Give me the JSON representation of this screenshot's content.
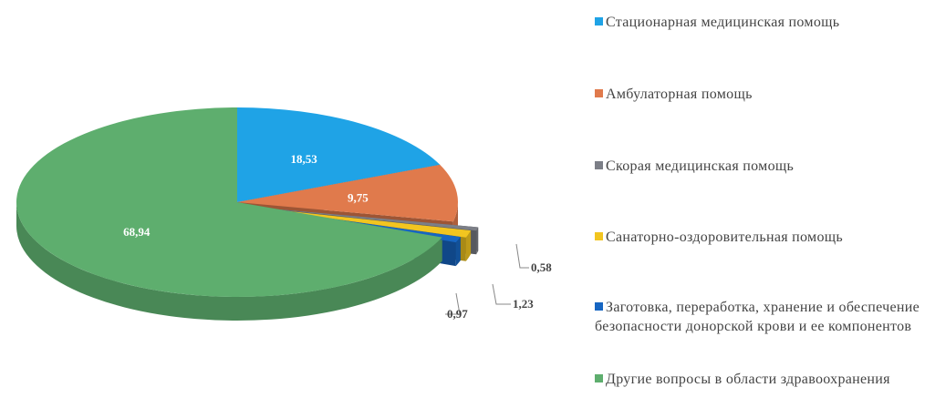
{
  "chart_data": {
    "type": "pie",
    "categories": [
      "Стационарная медицинская помощь",
      "Амбулаторная помощь",
      "Скорая медицинская помощь",
      "Санаторно-оздоровительная помощь",
      "Заготовка, переработка, хранение и обеспечение безопасности донорской крови и ее компонентов",
      "Другие вопросы в области здравоохранения"
    ],
    "values": [
      18.53,
      9.75,
      0.58,
      1.23,
      0.97,
      68.94
    ],
    "value_labels": [
      "18,53",
      "9,75",
      "0,58",
      "1,23",
      "0,97",
      "68,94"
    ],
    "colors": [
      "#1fa3e6",
      "#e07a4c",
      "#7c7f87",
      "#f2c520",
      "#1766c2",
      "#5eae6e"
    ],
    "legend": "right"
  }
}
